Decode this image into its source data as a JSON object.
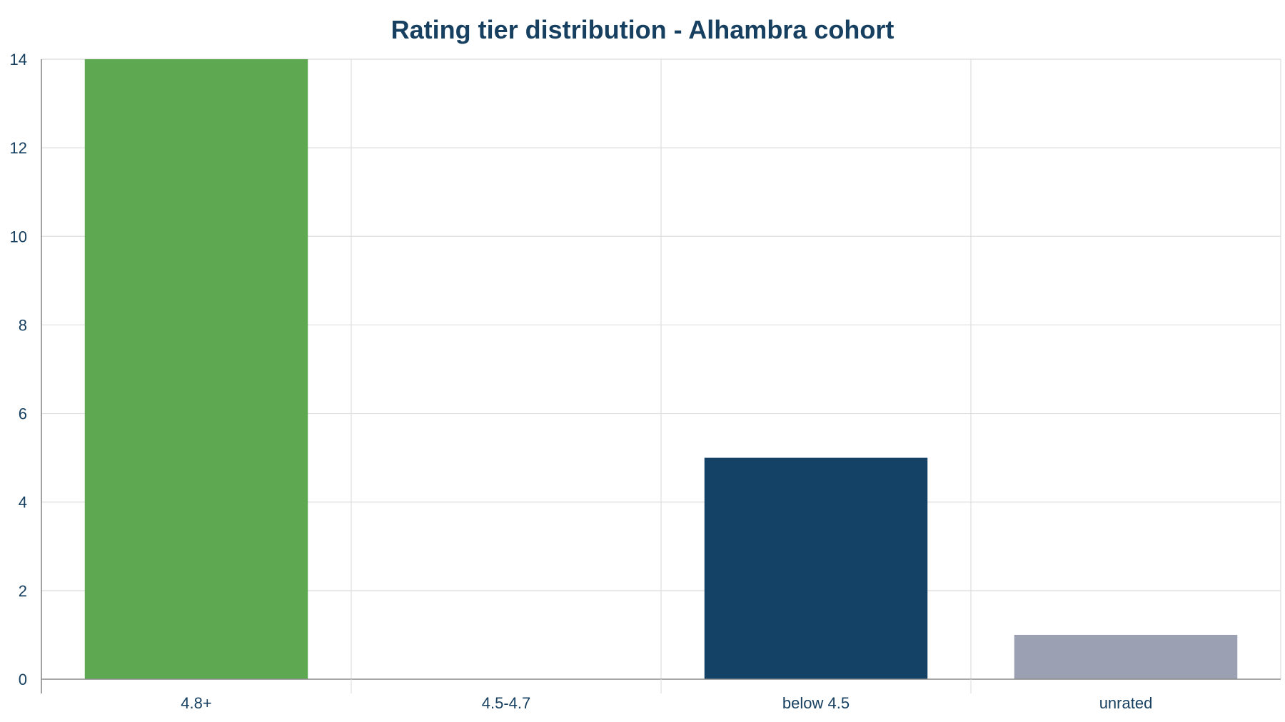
{
  "chart_data": {
    "type": "bar",
    "title": "Rating tier distribution - Alhambra cohort",
    "xlabel": "",
    "ylabel": "",
    "categories": [
      "4.8+",
      "4.5-4.7",
      "below 4.5",
      "unrated"
    ],
    "values": [
      14,
      0,
      5,
      1
    ],
    "colors": [
      "#5da851",
      "#5da851",
      "#144266",
      "#9ba0b2"
    ],
    "ylim": [
      0,
      14
    ],
    "yticks": [
      0,
      2,
      4,
      6,
      8,
      10,
      12,
      14
    ],
    "grid": true,
    "legend": "none"
  }
}
